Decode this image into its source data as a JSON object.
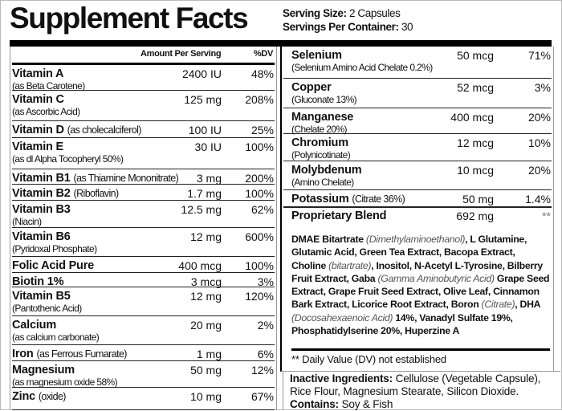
{
  "title": "Supplement Facts",
  "serving": {
    "size_label": "Serving Size:",
    "size_value": "2 Capsules",
    "per_container_label": "Servings Per Container:",
    "per_container_value": "30"
  },
  "header": {
    "amount": "Amount Per Serving",
    "dv": "%DV"
  },
  "left_rows": [
    {
      "name": "Vitamin A",
      "sub": "(as Beta Carotene)",
      "amount": "2400 IU",
      "dv": "48%"
    },
    {
      "name": "Vitamin C",
      "sub": "(as Ascorbic Acid)",
      "amount": "125 mg",
      "dv": "208%"
    },
    {
      "name": "Vitamin D",
      "inline": "(as cholecalciferol)",
      "amount": "100 IU",
      "dv": "25%"
    },
    {
      "name": "Vitamin E",
      "sub": "(as dl Alpha Tocopheryl 50%)",
      "amount": "30 IU",
      "dv": "100%"
    },
    {
      "name": "Vitamin B1",
      "inline": "(as Thiamine Mononitrate)",
      "amount": "3 mg",
      "dv": "200%"
    },
    {
      "name": "Vitamin B2",
      "inline": "(Riboflavin)",
      "amount": "1.7 mg",
      "dv": "100%"
    },
    {
      "name": "Vitamin B3",
      "sub": "(Niacin)",
      "amount": "12.5 mg",
      "dv": "62%"
    },
    {
      "name": "Vitamin B6",
      "sub": "(Pyridoxal Phosphate)",
      "amount": "12 mg",
      "dv": "600%"
    },
    {
      "name": "Folic Acid Pure",
      "amount": "400 mcg",
      "dv": "100%"
    },
    {
      "name": "Biotin 1%",
      "amount": "3 mcg",
      "dv": "3%"
    },
    {
      "name": "Vitamin B5",
      "sub": "(Pantothenic Acid)",
      "amount": "12 mg",
      "dv": "120%"
    },
    {
      "name": "Calcium",
      "sub": "(as calcium carbonate)",
      "amount": "20 mg",
      "dv": "2%"
    },
    {
      "name": "Iron",
      "inline": "(as Ferrous Fumarate)",
      "amount": "1 mg",
      "dv": "6%"
    },
    {
      "name": "Magnesium",
      "sub": "(as magnesium oxide 58%)",
      "amount": "50 mg",
      "dv": "12%"
    },
    {
      "name": "Zinc",
      "inline": "(oxide)",
      "amount": "10 mg",
      "dv": "67%"
    }
  ],
  "right_rows": [
    {
      "name": "Selenium",
      "sub": "(Selenium Amino Acid Chelate 0.2%)",
      "amount": "50 mcg",
      "dv": "71%"
    },
    {
      "name": "Copper",
      "sub": "(Gluconate 13%)",
      "amount": "52 mcg",
      "dv": "3%"
    },
    {
      "name": "Manganese",
      "sub": "(Chelate 20%)",
      "amount": "400 mcg",
      "dv": "20%"
    },
    {
      "name": "Chromium",
      "sub": "(Polynicotinate)",
      "amount": "12 mcg",
      "dv": "10%"
    },
    {
      "name": "Molybdenum",
      "sub": "(Amino Chelate)",
      "amount": "10 mcg",
      "dv": "20%"
    },
    {
      "name": "Potassium",
      "inline": "(Citrate 36%)",
      "amount": "50 mg",
      "dv": "1.4%"
    },
    {
      "name": "Proprietary Blend",
      "amount": "692 mg",
      "dv": "**"
    }
  ],
  "blend_parts": [
    [
      "b",
      "DMAE Bitartrate "
    ],
    [
      "i",
      "(Dimethylaminoethanol)"
    ],
    [
      "b",
      ", L Glutamine, Glutamic Acid, Green Tea Extract, Bacopa Extract, Choline "
    ],
    [
      "i",
      "(bitartrate)"
    ],
    [
      "b",
      ", Inositol, N-Acetyl L-Tyrosine, Bilberry Fruit Extract, Gaba "
    ],
    [
      "i",
      "(Gamma Aminobutyric Acid)"
    ],
    [
      "b",
      " Grape Seed Extract, Grape Fruit Seed Extract, Olive Leaf, Cinnamon Bark Extract, Licorice Root Extract, Boron "
    ],
    [
      "i",
      "(Citrate)"
    ],
    [
      "b",
      ", DHA "
    ],
    [
      "i",
      "(Docosahexaenoic Acid)"
    ],
    [
      "b",
      " 14%, Vanadyl Sulfate 19%, Phosphatidylserine 20%, Huperzine A"
    ]
  ],
  "dv_note": "** Daily Value (DV) not established",
  "inactive": {
    "label": "Inactive Ingredients:",
    "value": " Cellulose (Vegetable Capsule), Rice Flour, Magnesium Stearate, Silicon Dioxide.",
    "contains_label": "Contains:",
    "contains_value": " Soy & Fish"
  }
}
